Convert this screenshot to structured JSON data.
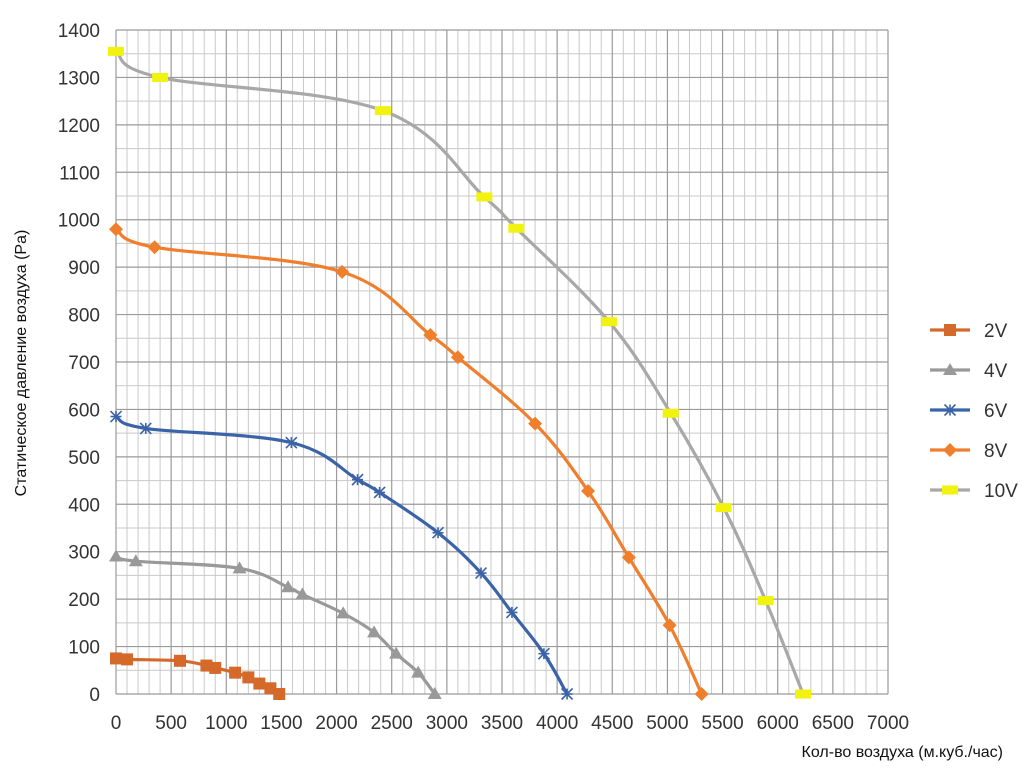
{
  "chart_data": {
    "type": "line",
    "title": "",
    "xlabel": "Кол-во воздуха (м.куб./час)",
    "ylabel": "Статическое давление воздуха (Pa)",
    "xlim": [
      0,
      7000
    ],
    "ylim": [
      0,
      1400
    ],
    "x_ticks": [
      0,
      500,
      1000,
      1500,
      2000,
      2500,
      3000,
      3500,
      4000,
      4500,
      5000,
      5500,
      6000,
      6500,
      7000
    ],
    "y_ticks": [
      0,
      100,
      200,
      300,
      400,
      500,
      600,
      700,
      800,
      900,
      1000,
      1100,
      1200,
      1300,
      1400
    ],
    "minor_x_step": 100,
    "minor_y_step": 50,
    "grid": true,
    "legend_position": "right",
    "series": [
      {
        "name": "2V",
        "color": "#d4692a",
        "marker": "square",
        "points": [
          [
            0,
            75
          ],
          [
            100,
            73
          ],
          [
            580,
            70
          ],
          [
            820,
            60
          ],
          [
            900,
            55
          ],
          [
            1080,
            45
          ],
          [
            1200,
            35
          ],
          [
            1300,
            22
          ],
          [
            1400,
            12
          ],
          [
            1480,
            0
          ]
        ]
      },
      {
        "name": "4V",
        "color": "#999999",
        "marker": "triangle",
        "points": [
          [
            0,
            290
          ],
          [
            180,
            280
          ],
          [
            1120,
            265
          ],
          [
            1560,
            225
          ],
          [
            1690,
            210
          ],
          [
            2060,
            170
          ],
          [
            2340,
            130
          ],
          [
            2540,
            85
          ],
          [
            2740,
            45
          ],
          [
            2890,
            0
          ]
        ]
      },
      {
        "name": "6V",
        "color": "#3a63a8",
        "marker": "star",
        "points": [
          [
            0,
            585
          ],
          [
            270,
            560
          ],
          [
            1590,
            530
          ],
          [
            2190,
            452
          ],
          [
            2390,
            425
          ],
          [
            2920,
            340
          ],
          [
            3310,
            255
          ],
          [
            3590,
            172
          ],
          [
            3880,
            85
          ],
          [
            4090,
            0
          ]
        ]
      },
      {
        "name": "8V",
        "color": "#f07f2d",
        "marker": "diamond",
        "points": [
          [
            0,
            980
          ],
          [
            350,
            942
          ],
          [
            2050,
            890
          ],
          [
            2850,
            757
          ],
          [
            3100,
            710
          ],
          [
            3800,
            570
          ],
          [
            4280,
            428
          ],
          [
            4650,
            288
          ],
          [
            5020,
            145
          ],
          [
            5310,
            0
          ]
        ]
      },
      {
        "name": "10V",
        "color": "#a8a8a8",
        "marker": "rect",
        "marker_color": "#f2f20f",
        "points": [
          [
            0,
            1355
          ],
          [
            400,
            1300
          ],
          [
            2420,
            1230
          ],
          [
            3340,
            1048
          ],
          [
            3630,
            982
          ],
          [
            4470,
            785
          ],
          [
            5030,
            592
          ],
          [
            5510,
            393
          ],
          [
            5890,
            197
          ],
          [
            6230,
            0
          ]
        ]
      }
    ]
  }
}
